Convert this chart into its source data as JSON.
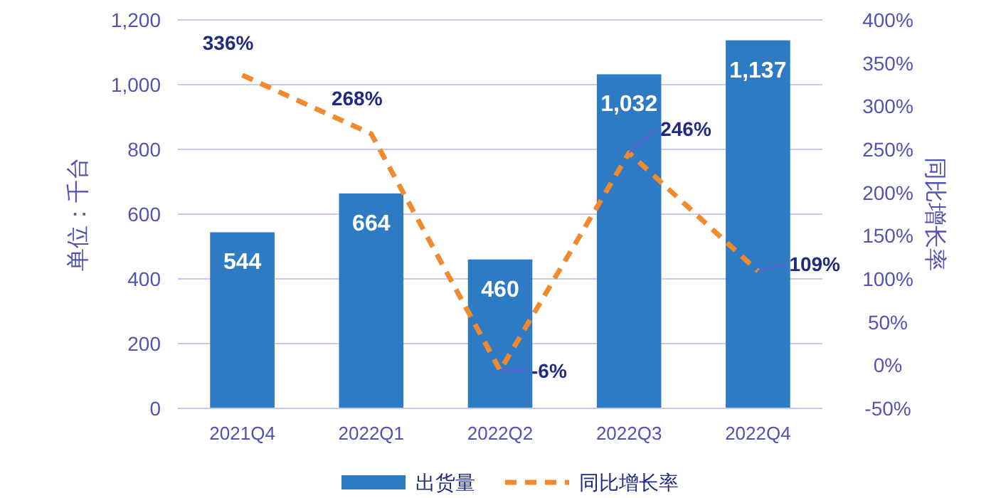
{
  "chart_data": {
    "type": "bar",
    "categories": [
      "2021Q4",
      "2022Q1",
      "2022Q2",
      "2022Q3",
      "2022Q4"
    ],
    "ylabel": "单位：千台",
    "y2label": "同比增长率",
    "ylim": [
      0,
      1200
    ],
    "yticks": [
      0,
      200,
      400,
      600,
      800,
      {
        "value": 1000,
        "label": "1,000"
      },
      {
        "value": 1200,
        "label": "1,200"
      }
    ],
    "y2lim": [
      -50,
      400
    ],
    "y2ticks": [
      {
        "value": -50,
        "label": "-50%"
      },
      {
        "value": 0,
        "label": "0%"
      },
      {
        "value": 50,
        "label": "50%"
      },
      {
        "value": 100,
        "label": "100%"
      },
      {
        "value": 150,
        "label": "150%"
      },
      {
        "value": 200,
        "label": "200%"
      },
      {
        "value": 250,
        "label": "250%"
      },
      {
        "value": 300,
        "label": "300%"
      },
      {
        "value": 350,
        "label": "350%"
      },
      {
        "value": 400,
        "label": "400%"
      }
    ],
    "series": [
      {
        "name": "出货量",
        "color": "#2e7bc4",
        "values": [
          544,
          664,
          460,
          1032,
          1137
        ],
        "value_labels": [
          "544",
          "664",
          "460",
          "1,032",
          "1,137"
        ]
      },
      {
        "name": "同比增长率",
        "type": "line",
        "axis": "y2",
        "color": "#f08a2c",
        "line_style": "dashed",
        "values": [
          336,
          268,
          -6,
          246,
          109
        ],
        "value_labels": [
          "336%",
          "268%",
          "-6%",
          "246%",
          "109%"
        ]
      }
    ],
    "grid": "y",
    "legend": "bottom"
  }
}
